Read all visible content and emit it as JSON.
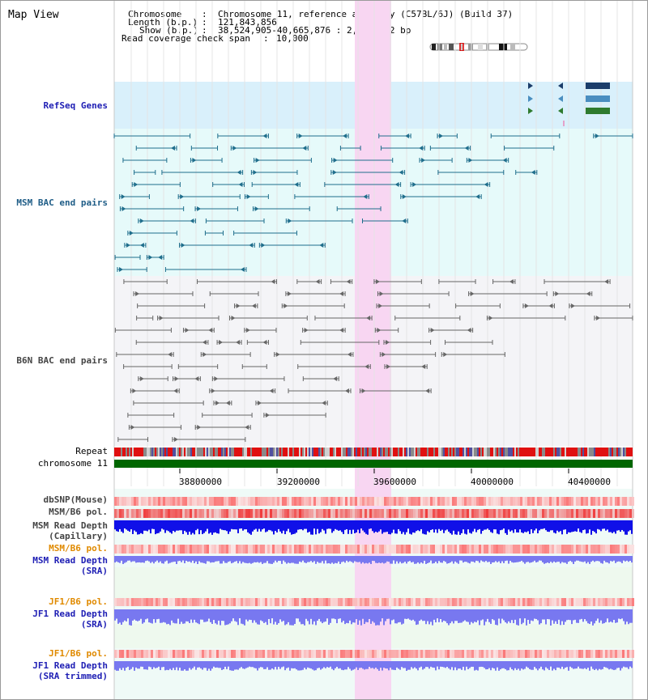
{
  "title": "Map View",
  "header": {
    "chromosome_key": "Chromosome",
    "chromosome_val": "Chromosome 11, reference assembly (C57BL/6J) (Build 37)",
    "length_key": "Length (b.p.)",
    "length_val": "121,843,856",
    "show_key": "Show (b.p.)",
    "show_val": "38,524,905-40,665,876 : 2,140,972 bp",
    "span_key": "Read coverage check span",
    "span_val": "10,000"
  },
  "tracks": {
    "refseq": "RefSeq Genes",
    "msm_bac": "MSM BAC end pairs",
    "b6n_bac": "B6N BAC end pairs",
    "repeat": "Repeat",
    "chromosome": "chromosome 11",
    "dbsnp": "dbSNP(Mouse)",
    "msm_b6_pol_1": "MSM/B6 pol.",
    "msm_depth_cap_1": "MSM Read Depth",
    "msm_depth_cap_2": "(Capillary)",
    "msm_b6_pol_2": "MSM/B6 pol.",
    "msm_depth_sra_1": "MSM Read Depth",
    "msm_depth_sra_2": "(SRA)",
    "jf1_pol_1": "JF1/B6 pol.",
    "jf1_depth_sra_1": "JF1 Read Depth",
    "jf1_depth_sra_2": "(SRA)",
    "jf1_pol_2": "JF1/B6 pol.",
    "jf1_depth_trim_1": "JF1 Read Depth",
    "jf1_depth_trim_2": "(SRA trimmed)"
  },
  "axis_ticks": [
    "38800000",
    "39200000",
    "39600000",
    "40000000",
    "40400000"
  ],
  "colors": {
    "refseq_bg": "#d9f0fb",
    "lane_bg": "#e6fafa",
    "highlight": "#f8d6f2",
    "bac_msm": "#1f6e8c",
    "bac_b6n": "#666666",
    "repeat_red": "#e01010",
    "chromosome": "#006600",
    "depth_cap": "#1010e8",
    "depth_sra": "#7878f0",
    "pol_red": "#f04040"
  }
}
